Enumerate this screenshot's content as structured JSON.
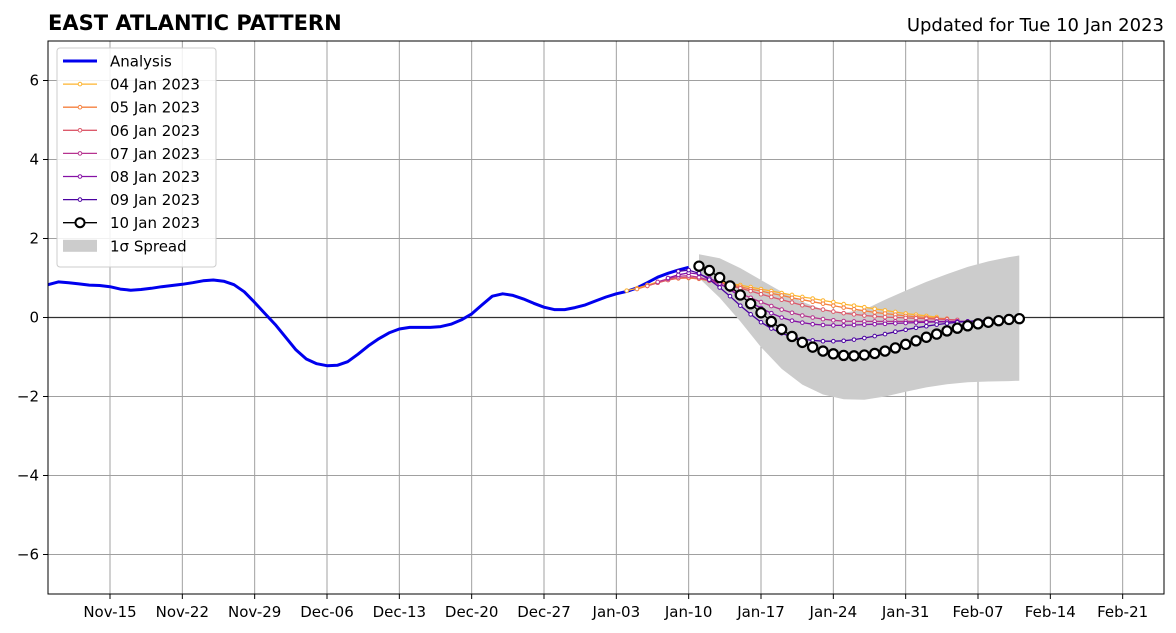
{
  "chart_data": {
    "type": "line",
    "title": "EAST ATLANTIC PATTERN",
    "subtitle": "Updated for Tue 10 Jan 2023",
    "xlabel": "",
    "ylabel": "",
    "xlim": [
      "2022-11-09",
      "2023-02-25"
    ],
    "ylim": [
      -7,
      7
    ],
    "grid": true,
    "legend_position": "top-left",
    "x_ticks": [
      "2022-11-15",
      "2022-11-22",
      "2022-11-29",
      "2022-12-06",
      "2022-12-13",
      "2022-12-20",
      "2022-12-27",
      "2023-01-03",
      "2023-01-10",
      "2023-01-17",
      "2023-01-24",
      "2023-01-31",
      "2023-02-07",
      "2023-02-14",
      "2023-02-21"
    ],
    "x_tick_labels": [
      "Nov-15",
      "Nov-22",
      "Nov-29",
      "Dec-06",
      "Dec-13",
      "Dec-20",
      "Dec-27",
      "Jan-03",
      "Jan-10",
      "Jan-17",
      "Jan-24",
      "Jan-31",
      "Feb-07",
      "Feb-14",
      "Feb-21"
    ],
    "y_ticks": [
      -6,
      -4,
      -2,
      0,
      2,
      4,
      6
    ],
    "y_tick_labels": [
      "−6",
      "−4",
      "−2",
      "0",
      "2",
      "4",
      "6"
    ],
    "series": [
      {
        "name": "Analysis",
        "color": "#0000ee",
        "x": [
          "2022-11-09",
          "2022-11-10",
          "2022-11-11",
          "2022-11-12",
          "2022-11-13",
          "2022-11-14",
          "2022-11-15",
          "2022-11-16",
          "2022-11-17",
          "2022-11-18",
          "2022-11-19",
          "2022-11-20",
          "2022-11-21",
          "2022-11-22",
          "2022-11-23",
          "2022-11-24",
          "2022-11-25",
          "2022-11-26",
          "2022-11-27",
          "2022-11-28",
          "2022-11-29",
          "2022-11-30",
          "2022-12-01",
          "2022-12-02",
          "2022-12-03",
          "2022-12-04",
          "2022-12-05",
          "2022-12-06",
          "2022-12-07",
          "2022-12-08",
          "2022-12-09",
          "2022-12-10",
          "2022-12-11",
          "2022-12-12",
          "2022-12-13",
          "2022-12-14",
          "2022-12-15",
          "2022-12-16",
          "2022-12-17",
          "2022-12-18",
          "2022-12-19",
          "2022-12-20",
          "2022-12-21",
          "2022-12-22",
          "2022-12-23",
          "2022-12-24",
          "2022-12-25",
          "2022-12-26",
          "2022-12-27",
          "2022-12-28",
          "2022-12-29",
          "2022-12-30",
          "2022-12-31",
          "2023-01-01",
          "2023-01-02",
          "2023-01-03",
          "2023-01-04",
          "2023-01-05",
          "2023-01-06",
          "2023-01-07",
          "2023-01-08",
          "2023-01-09",
          "2023-01-10"
        ],
        "values": [
          0.83,
          0.9,
          0.88,
          0.85,
          0.82,
          0.81,
          0.78,
          0.72,
          0.69,
          0.71,
          0.74,
          0.78,
          0.81,
          0.84,
          0.88,
          0.93,
          0.95,
          0.92,
          0.83,
          0.65,
          0.38,
          0.1,
          -0.18,
          -0.5,
          -0.82,
          -1.05,
          -1.17,
          -1.22,
          -1.21,
          -1.12,
          -0.93,
          -0.72,
          -0.54,
          -0.39,
          -0.29,
          -0.25,
          -0.25,
          -0.25,
          -0.23,
          -0.17,
          -0.06,
          0.09,
          0.32,
          0.54,
          0.6,
          0.56,
          0.47,
          0.36,
          0.26,
          0.2,
          0.2,
          0.25,
          0.32,
          0.42,
          0.52,
          0.6,
          0.66,
          0.75,
          0.88,
          1.02,
          1.12,
          1.2,
          1.27
        ]
      },
      {
        "name": "04 Jan 2023",
        "color": "#fdb42f",
        "x": [
          "2023-01-04",
          "2023-01-05",
          "2023-01-06",
          "2023-01-07",
          "2023-01-08",
          "2023-01-09",
          "2023-01-10",
          "2023-01-11",
          "2023-01-12",
          "2023-01-13",
          "2023-01-14",
          "2023-01-15",
          "2023-01-16",
          "2023-01-17",
          "2023-01-18",
          "2023-01-19",
          "2023-01-20",
          "2023-01-21",
          "2023-01-22",
          "2023-01-23",
          "2023-01-24",
          "2023-01-25",
          "2023-01-26",
          "2023-01-27",
          "2023-01-28",
          "2023-01-29",
          "2023-01-30",
          "2023-01-31",
          "2023-02-01",
          "2023-02-02",
          "2023-02-03"
        ],
        "values": [
          0.68,
          0.74,
          0.82,
          0.9,
          0.97,
          1.0,
          1.0,
          0.98,
          0.94,
          0.9,
          0.86,
          0.82,
          0.77,
          0.72,
          0.67,
          0.62,
          0.57,
          0.52,
          0.48,
          0.43,
          0.39,
          0.34,
          0.3,
          0.26,
          0.22,
          0.18,
          0.14,
          0.1,
          0.07,
          0.04,
          0.01
        ]
      },
      {
        "name": "05 Jan 2023",
        "color": "#f5813f",
        "x": [
          "2023-01-05",
          "2023-01-06",
          "2023-01-07",
          "2023-01-08",
          "2023-01-09",
          "2023-01-10",
          "2023-01-11",
          "2023-01-12",
          "2023-01-13",
          "2023-01-14",
          "2023-01-15",
          "2023-01-16",
          "2023-01-17",
          "2023-01-18",
          "2023-01-19",
          "2023-01-20",
          "2023-01-21",
          "2023-01-22",
          "2023-01-23",
          "2023-01-24",
          "2023-01-25",
          "2023-01-26",
          "2023-01-27",
          "2023-01-28",
          "2023-01-29",
          "2023-01-30",
          "2023-01-31",
          "2023-02-01",
          "2023-02-02",
          "2023-02-03",
          "2023-02-04"
        ],
        "values": [
          0.72,
          0.8,
          0.88,
          0.95,
          0.99,
          1.0,
          0.98,
          0.93,
          0.88,
          0.83,
          0.78,
          0.72,
          0.67,
          0.61,
          0.56,
          0.5,
          0.45,
          0.4,
          0.35,
          0.3,
          0.25,
          0.21,
          0.17,
          0.13,
          0.1,
          0.07,
          0.04,
          0.02,
          0.0,
          -0.02,
          -0.03
        ]
      },
      {
        "name": "06 Jan 2023",
        "color": "#dc5a6b",
        "x": [
          "2023-01-06",
          "2023-01-07",
          "2023-01-08",
          "2023-01-09",
          "2023-01-10",
          "2023-01-11",
          "2023-01-12",
          "2023-01-13",
          "2023-01-14",
          "2023-01-15",
          "2023-01-16",
          "2023-01-17",
          "2023-01-18",
          "2023-01-19",
          "2023-01-20",
          "2023-01-21",
          "2023-01-22",
          "2023-01-23",
          "2023-01-24",
          "2023-01-25",
          "2023-01-26",
          "2023-01-27",
          "2023-01-28",
          "2023-01-29",
          "2023-01-30",
          "2023-01-31",
          "2023-02-01",
          "2023-02-02",
          "2023-02-03",
          "2023-02-04",
          "2023-02-05"
        ],
        "values": [
          0.8,
          0.88,
          0.95,
          1.0,
          1.02,
          0.99,
          0.94,
          0.88,
          0.81,
          0.74,
          0.67,
          0.59,
          0.52,
          0.45,
          0.38,
          0.31,
          0.25,
          0.2,
          0.15,
          0.11,
          0.08,
          0.05,
          0.03,
          0.01,
          0.0,
          -0.01,
          -0.02,
          -0.03,
          -0.04,
          -0.05,
          -0.06
        ]
      },
      {
        "name": "07 Jan 2023",
        "color": "#b6338f",
        "x": [
          "2023-01-07",
          "2023-01-08",
          "2023-01-09",
          "2023-01-10",
          "2023-01-11",
          "2023-01-12",
          "2023-01-13",
          "2023-01-14",
          "2023-01-15",
          "2023-01-16",
          "2023-01-17",
          "2023-01-18",
          "2023-01-19",
          "2023-01-20",
          "2023-01-21",
          "2023-01-22",
          "2023-01-23",
          "2023-01-24",
          "2023-01-25",
          "2023-01-26",
          "2023-01-27",
          "2023-01-28",
          "2023-01-29",
          "2023-01-30",
          "2023-01-31",
          "2023-02-01",
          "2023-02-02",
          "2023-02-03",
          "2023-02-04",
          "2023-02-05",
          "2023-02-06"
        ],
        "values": [
          0.9,
          0.98,
          1.04,
          1.06,
          1.02,
          0.94,
          0.84,
          0.73,
          0.61,
          0.5,
          0.39,
          0.29,
          0.2,
          0.12,
          0.05,
          0.0,
          -0.04,
          -0.07,
          -0.09,
          -0.1,
          -0.1,
          -0.1,
          -0.1,
          -0.1,
          -0.1,
          -0.1,
          -0.1,
          -0.1,
          -0.1,
          -0.1,
          -0.1
        ]
      },
      {
        "name": "08 Jan 2023",
        "color": "#8511a5",
        "x": [
          "2023-01-08",
          "2023-01-09",
          "2023-01-10",
          "2023-01-11",
          "2023-01-12",
          "2023-01-13",
          "2023-01-14",
          "2023-01-15",
          "2023-01-16",
          "2023-01-17",
          "2023-01-18",
          "2023-01-19",
          "2023-01-20",
          "2023-01-21",
          "2023-01-22",
          "2023-01-23",
          "2023-01-24",
          "2023-01-25",
          "2023-01-26",
          "2023-01-27",
          "2023-01-28",
          "2023-01-29",
          "2023-01-30",
          "2023-01-31",
          "2023-02-01",
          "2023-02-02",
          "2023-02-03",
          "2023-02-04",
          "2023-02-05",
          "2023-02-06",
          "2023-02-07"
        ],
        "values": [
          1.0,
          1.08,
          1.13,
          1.1,
          1.0,
          0.86,
          0.7,
          0.54,
          0.38,
          0.24,
          0.11,
          0.0,
          -0.08,
          -0.13,
          -0.17,
          -0.19,
          -0.2,
          -0.2,
          -0.19,
          -0.18,
          -0.17,
          -0.16,
          -0.15,
          -0.14,
          -0.13,
          -0.12,
          -0.11,
          -0.11,
          -0.1,
          -0.1,
          -0.1
        ]
      },
      {
        "name": "09 Jan 2023",
        "color": "#4b02a1",
        "x": [
          "2023-01-09",
          "2023-01-10",
          "2023-01-11",
          "2023-01-12",
          "2023-01-13",
          "2023-01-14",
          "2023-01-15",
          "2023-01-16",
          "2023-01-17",
          "2023-01-18",
          "2023-01-19",
          "2023-01-20",
          "2023-01-21",
          "2023-01-22",
          "2023-01-23",
          "2023-01-24",
          "2023-01-25",
          "2023-01-26",
          "2023-01-27",
          "2023-01-28",
          "2023-01-29",
          "2023-01-30",
          "2023-01-31",
          "2023-02-01",
          "2023-02-02",
          "2023-02-03",
          "2023-02-04",
          "2023-02-05",
          "2023-02-06",
          "2023-02-07",
          "2023-02-08"
        ],
        "values": [
          1.17,
          1.2,
          1.12,
          0.96,
          0.76,
          0.54,
          0.3,
          0.08,
          -0.12,
          -0.28,
          -0.4,
          -0.49,
          -0.55,
          -0.58,
          -0.6,
          -0.6,
          -0.59,
          -0.56,
          -0.52,
          -0.47,
          -0.42,
          -0.36,
          -0.31,
          -0.26,
          -0.22,
          -0.18,
          -0.15,
          -0.12,
          -0.1,
          -0.08,
          -0.07
        ]
      },
      {
        "name": "10 Jan 2023",
        "color": "#000000",
        "x": [
          "2023-01-11",
          "2023-01-12",
          "2023-01-13",
          "2023-01-14",
          "2023-01-15",
          "2023-01-16",
          "2023-01-17",
          "2023-01-18",
          "2023-01-19",
          "2023-01-20",
          "2023-01-21",
          "2023-01-22",
          "2023-01-23",
          "2023-01-24",
          "2023-01-25",
          "2023-01-26",
          "2023-01-27",
          "2023-01-28",
          "2023-01-29",
          "2023-01-30",
          "2023-01-31",
          "2023-02-01",
          "2023-02-02",
          "2023-02-03",
          "2023-02-04",
          "2023-02-05",
          "2023-02-06",
          "2023-02-07",
          "2023-02-08",
          "2023-02-09",
          "2023-02-10",
          "2023-02-11"
        ],
        "values": [
          1.3,
          1.19,
          1.01,
          0.8,
          0.57,
          0.35,
          0.12,
          -0.1,
          -0.3,
          -0.48,
          -0.63,
          -0.75,
          -0.85,
          -0.92,
          -0.96,
          -0.97,
          -0.95,
          -0.91,
          -0.85,
          -0.77,
          -0.68,
          -0.59,
          -0.5,
          -0.42,
          -0.34,
          -0.27,
          -0.21,
          -0.16,
          -0.12,
          -0.08,
          -0.05,
          -0.03
        ]
      }
    ],
    "spread": {
      "name": "1σ Spread",
      "color": "#cccccc",
      "x": [
        "2023-01-11",
        "2023-01-13",
        "2023-01-15",
        "2023-01-17",
        "2023-01-19",
        "2023-01-21",
        "2023-01-23",
        "2023-01-25",
        "2023-01-27",
        "2023-01-29",
        "2023-01-31",
        "2023-02-02",
        "2023-02-04",
        "2023-02-06",
        "2023-02-08",
        "2023-02-10",
        "2023-02-11"
      ],
      "upper": [
        1.6,
        1.5,
        1.25,
        0.95,
        0.65,
        0.4,
        0.2,
        0.12,
        0.2,
        0.45,
        0.68,
        0.9,
        1.1,
        1.28,
        1.42,
        1.53,
        1.57
      ],
      "lower": [
        1.0,
        0.5,
        -0.1,
        -0.75,
        -1.3,
        -1.7,
        -1.95,
        -2.07,
        -2.08,
        -2.0,
        -1.88,
        -1.77,
        -1.69,
        -1.64,
        -1.62,
        -1.61,
        -1.6
      ]
    }
  }
}
